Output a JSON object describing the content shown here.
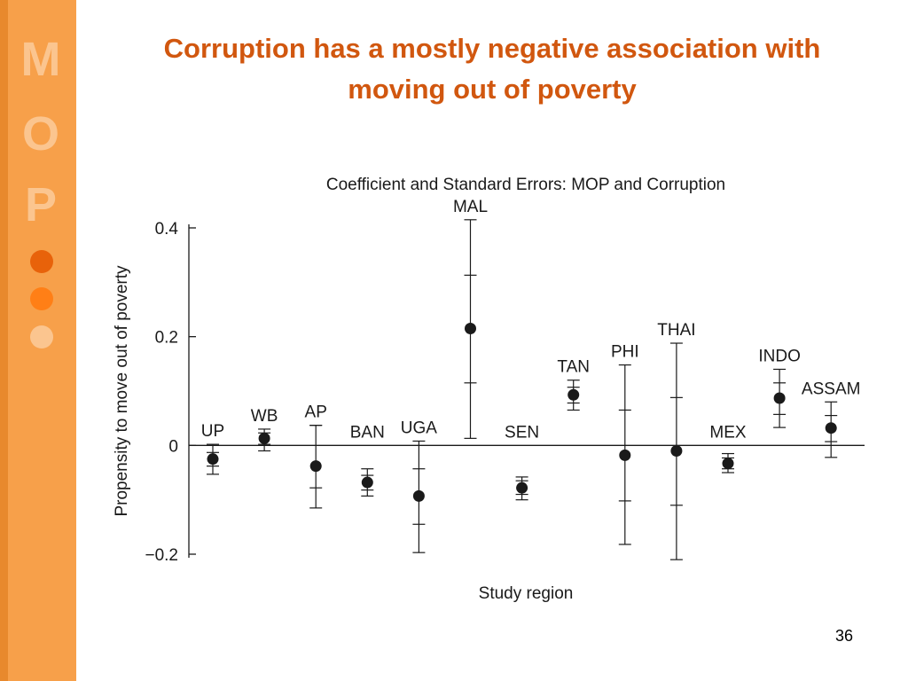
{
  "slide": {
    "title_line1": "Corruption has a mostly negative association with",
    "title_line2": "moving out of poverty",
    "page_number": "36"
  },
  "sidebar": {
    "logo_letters": [
      "M",
      "O",
      "P"
    ],
    "dot_colors": [
      "#e8620a",
      "#ff7f16",
      "#fbc58f"
    ]
  },
  "colors": {
    "title": "#d1570f",
    "sidebar": "#f7a04a",
    "sidebar_edge": "#e8892d",
    "markers": "#1a1a1a"
  },
  "chart_data": {
    "type": "scatter",
    "title": "Coefficient and Standard Errors: MOP and Corruption",
    "xlabel": "Study region",
    "ylabel": "Propensity to move out of poverty",
    "ylim": [
      -0.2,
      0.4
    ],
    "yticks": [
      0.4,
      0.2,
      0,
      -0.2
    ],
    "ytick_labels": [
      "0.4",
      "0.2",
      "0",
      "−0.2"
    ],
    "grid": false,
    "legend": "none",
    "categories": [
      "UP",
      "WB",
      "AP",
      "BAN",
      "UGA",
      "MAL",
      "SEN",
      "TAN",
      "PHI",
      "THAI",
      "MEX",
      "INDO",
      "ASSAM"
    ],
    "series": [
      {
        "values": [
          -0.025,
          0.013,
          -0.038,
          -0.068,
          -0.093,
          0.215,
          -0.078,
          0.093,
          -0.018,
          -0.01,
          -0.033,
          0.087,
          0.032
        ],
        "se_inner": [
          [
            -0.038,
            -0.013
          ],
          [
            0.002,
            0.023
          ],
          [
            -0.078,
            0.037
          ],
          [
            -0.082,
            -0.055
          ],
          [
            -0.145,
            -0.043
          ],
          [
            0.115,
            0.313
          ],
          [
            -0.09,
            -0.065
          ],
          [
            0.078,
            0.107
          ],
          [
            -0.102,
            0.065
          ],
          [
            -0.11,
            0.088
          ],
          [
            -0.043,
            -0.023
          ],
          [
            0.057,
            0.115
          ],
          [
            0.007,
            0.055
          ]
        ],
        "se_outer": [
          [
            -0.053,
            0.002
          ],
          [
            -0.01,
            0.03
          ],
          [
            -0.115,
            0.037
          ],
          [
            -0.093,
            -0.043
          ],
          [
            -0.197,
            0.008
          ],
          [
            0.013,
            0.415
          ],
          [
            -0.1,
            -0.058
          ],
          [
            0.065,
            0.12
          ],
          [
            -0.182,
            0.148
          ],
          [
            -0.21,
            0.188
          ],
          [
            -0.05,
            -0.015
          ],
          [
            0.033,
            0.14
          ],
          [
            -0.022,
            0.08
          ]
        ]
      }
    ]
  }
}
